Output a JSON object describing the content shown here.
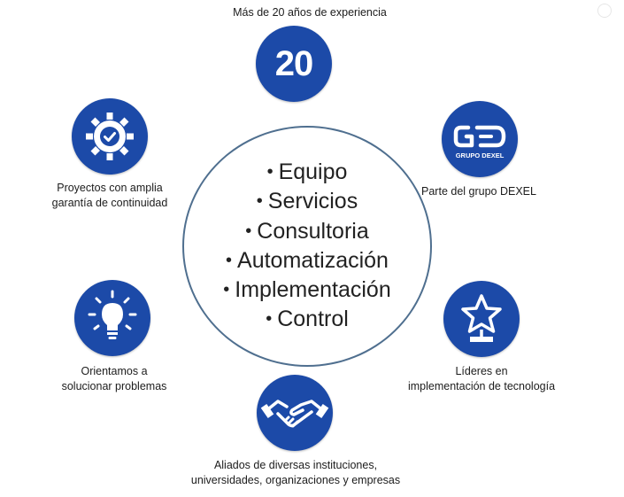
{
  "center": {
    "bullet": "•",
    "items": [
      "Equipo",
      "Servicios",
      "Consultoria",
      "Automatización",
      "Implementación",
      "Control"
    ]
  },
  "badge": {
    "text": "20"
  },
  "logo": {
    "text": "GRUPO DEXEL"
  },
  "features": {
    "experience": {
      "lines": [
        "Más de 20 años de experiencia"
      ],
      "icon": "number-20-icon"
    },
    "group": {
      "lines": [
        "Parte del grupo DEXEL"
      ],
      "icon": "grupo-dexel-logo"
    },
    "leaders": {
      "lines": [
        "Líderes en",
        "implementación de tecnología"
      ],
      "icon": "star-trophy-icon"
    },
    "allies": {
      "lines": [
        "Aliados de diversas instituciones,",
        "universidades, organizaciones y empresas"
      ],
      "icon": "handshake-icon"
    },
    "solve": {
      "lines": [
        "Orientamos a",
        "solucionar problemas"
      ],
      "icon": "lightbulb-icon"
    },
    "projects": {
      "lines": [
        "Proyectos con amplia",
        "garantía de continuidad"
      ],
      "icon": "gear-check-icon"
    }
  },
  "colors": {
    "icon_bg": "#1c4aa8",
    "circle_border": "#4f6f8f",
    "text": "#1c1c1c"
  }
}
